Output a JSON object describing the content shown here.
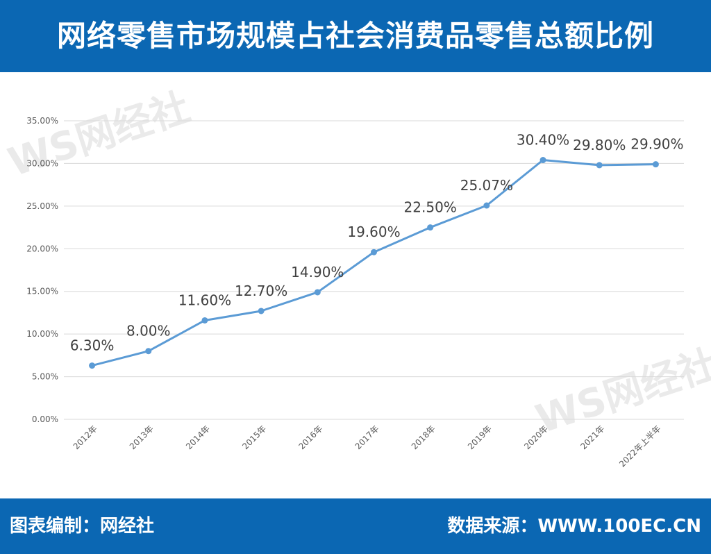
{
  "header": {
    "title": "网络零售市场规模占社会消费品零售总额比例"
  },
  "footer": {
    "left": "图表编制：网经社",
    "right": "数据来源：WWW.100EC.CN"
  },
  "watermark": {
    "logo": "WS网经社",
    "url": "WWW.100EC.CN"
  },
  "colors": {
    "header_bg": "#0b67b3",
    "line": "#5b9bd5",
    "grid": "#d9d9d9"
  },
  "chart_data": {
    "type": "line",
    "categories": [
      "2012年",
      "2013年",
      "2014年",
      "2015年",
      "2016年",
      "2017年",
      "2018年",
      "2019年",
      "2020年",
      "2021年",
      "2022年上半年"
    ],
    "series": [
      {
        "values": [
          6.3,
          8.0,
          11.6,
          12.7,
          14.9,
          19.6,
          22.5,
          25.07,
          30.4,
          29.8,
          29.9
        ],
        "labels": [
          "6.30%",
          "8.00%",
          "11.60%",
          "12.70%",
          "14.90%",
          "19.60%",
          "22.50%",
          "25.07%",
          "30.40%",
          "29.80%",
          "29.90%"
        ]
      }
    ],
    "yticks": [
      "0.00%",
      "5.00%",
      "10.00%",
      "15.00%",
      "20.00%",
      "25.00%",
      "30.00%",
      "35.00%"
    ],
    "ylim": [
      0,
      35
    ],
    "grid": true,
    "legend": "none"
  }
}
